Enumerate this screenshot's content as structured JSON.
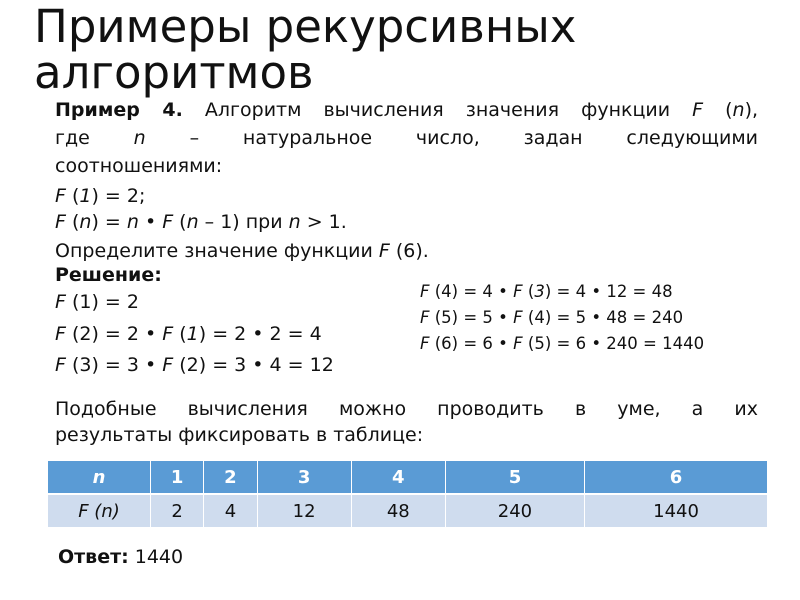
{
  "title": "Примеры рекурсивных алгоритмов",
  "problem": {
    "line1": [
      {
        "t": "Пример 4.",
        "s": "b"
      },
      {
        "t": " Алгоритм вычисления значения функции "
      },
      {
        "t": "F",
        "s": "i"
      },
      {
        "t": " ("
      },
      {
        "t": "n",
        "s": "i"
      },
      {
        "t": "),"
      }
    ],
    "line2": [
      {
        "t": "где "
      },
      {
        "t": "n",
        "s": "i"
      },
      {
        "t": " – натуральное число, задан следующими"
      }
    ],
    "line3": [
      {
        "t": "соотношениями:"
      }
    ],
    "line4": [
      {
        "t": "F",
        "s": "i"
      },
      {
        "t": " ("
      },
      {
        "t": "1",
        "s": "i"
      },
      {
        "t": ") = 2;"
      }
    ],
    "line5": [
      {
        "t": "F",
        "s": "i"
      },
      {
        "t": " ("
      },
      {
        "t": "n",
        "s": "i"
      },
      {
        "t": ") = "
      },
      {
        "t": "n",
        "s": "i"
      },
      {
        "t": " • "
      },
      {
        "t": "F",
        "s": "i"
      },
      {
        "t": " ("
      },
      {
        "t": "n",
        "s": "i"
      },
      {
        "t": " – 1) при "
      },
      {
        "t": "n",
        "s": "i"
      },
      {
        "t": " > 1."
      }
    ],
    "line6": [
      {
        "t": "Определите значение функции "
      },
      {
        "t": "F",
        "s": "i"
      },
      {
        "t": " (6)."
      }
    ]
  },
  "solution": {
    "heading": [
      {
        "t": "Решение:",
        "s": "b"
      }
    ],
    "left": [
      [
        {
          "t": "F",
          "s": "i"
        },
        {
          "t": " (1) = 2"
        }
      ],
      [
        {
          "t": "F",
          "s": "i"
        },
        {
          "t": " (2) = 2 • "
        },
        {
          "t": "F",
          "s": "i"
        },
        {
          "t": " ("
        },
        {
          "t": "1",
          "s": "i"
        },
        {
          "t": ")  = 2 • 2 = 4"
        }
      ],
      [
        {
          "t": "F",
          "s": "i"
        },
        {
          "t": " (3) = 3 • "
        },
        {
          "t": "F",
          "s": "i"
        },
        {
          "t": " (2)  = 3 • 4 = 12"
        }
      ]
    ],
    "right": [
      [
        {
          "t": "F",
          "s": "i"
        },
        {
          "t": " (4) = 4 • "
        },
        {
          "t": "F",
          "s": "i"
        },
        {
          "t": " ("
        },
        {
          "t": "3",
          "s": "i"
        },
        {
          "t": ")  = 4 • 12 = 48"
        }
      ],
      [
        {
          "t": "F",
          "s": "i"
        },
        {
          "t": " (5) = 5 • "
        },
        {
          "t": "F",
          "s": "i"
        },
        {
          "t": " (4)  = 5 • 48 = 240"
        }
      ],
      [
        {
          "t": "F",
          "s": "i"
        },
        {
          "t": " (6) = 6 • "
        },
        {
          "t": "F",
          "s": "i"
        },
        {
          "t": " (5)  = 6 • 240 = 1440"
        }
      ]
    ]
  },
  "note": {
    "line1": [
      {
        "t": "Подобные вычисления можно проводить в уме, а их"
      }
    ],
    "line2": [
      {
        "t": "результаты фиксировать в таблице:"
      }
    ]
  },
  "table": {
    "header_label": "n",
    "row_label": "F (n)",
    "n": [
      "1",
      "2",
      "3",
      "4",
      "5",
      "6"
    ],
    "values": [
      "2",
      "4",
      "12",
      "48",
      "240",
      "1440"
    ]
  },
  "answer": {
    "label": "Ответ:",
    "value": " 1440"
  },
  "colors": {
    "header": "#5a9bd5",
    "row": "#cfdcee"
  }
}
